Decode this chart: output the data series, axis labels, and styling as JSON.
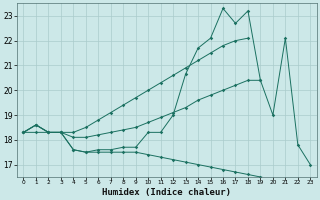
{
  "xlabel": "Humidex (Indice chaleur)",
  "x": [
    0,
    1,
    2,
    3,
    4,
    5,
    6,
    7,
    8,
    9,
    10,
    11,
    12,
    13,
    14,
    15,
    16,
    17,
    18,
    19,
    20,
    21,
    22,
    23
  ],
  "line_jagged": [
    18.3,
    18.6,
    18.3,
    18.3,
    17.6,
    17.5,
    17.6,
    17.6,
    17.7,
    17.7,
    18.3,
    18.3,
    19.0,
    20.65,
    21.7,
    22.1,
    23.3,
    22.7,
    23.2,
    20.4,
    19.0,
    22.1,
    17.8,
    17.0
  ],
  "line_smooth_top": [
    18.3,
    18.6,
    18.3,
    18.3,
    18.3,
    18.5,
    18.8,
    19.1,
    19.4,
    19.7,
    20.0,
    20.3,
    20.6,
    20.9,
    21.2,
    21.5,
    21.8,
    22.0,
    22.1,
    null,
    null,
    null,
    null,
    null
  ],
  "line_mid": [
    18.3,
    18.6,
    18.3,
    18.3,
    18.1,
    18.1,
    18.2,
    18.3,
    18.4,
    18.5,
    18.7,
    18.9,
    19.1,
    19.3,
    19.6,
    19.8,
    20.0,
    20.2,
    20.4,
    20.4,
    null,
    null,
    null,
    null
  ],
  "line_falling": [
    18.3,
    18.3,
    18.3,
    18.3,
    17.6,
    17.5,
    17.5,
    17.5,
    17.5,
    17.5,
    17.4,
    17.3,
    17.2,
    17.1,
    17.0,
    16.9,
    16.8,
    16.7,
    16.6,
    16.5,
    16.4,
    null,
    null,
    null
  ],
  "color": "#1a7060",
  "bg_color": "#cce8e8",
  "grid_color": "#aacccc",
  "ylim": [
    16.5,
    23.5
  ],
  "yticks": [
    17,
    18,
    19,
    20,
    21,
    22,
    23
  ],
  "xticks": [
    0,
    1,
    2,
    3,
    4,
    5,
    6,
    7,
    8,
    9,
    10,
    11,
    12,
    13,
    14,
    15,
    16,
    17,
    18,
    19,
    20,
    21,
    22,
    23
  ]
}
